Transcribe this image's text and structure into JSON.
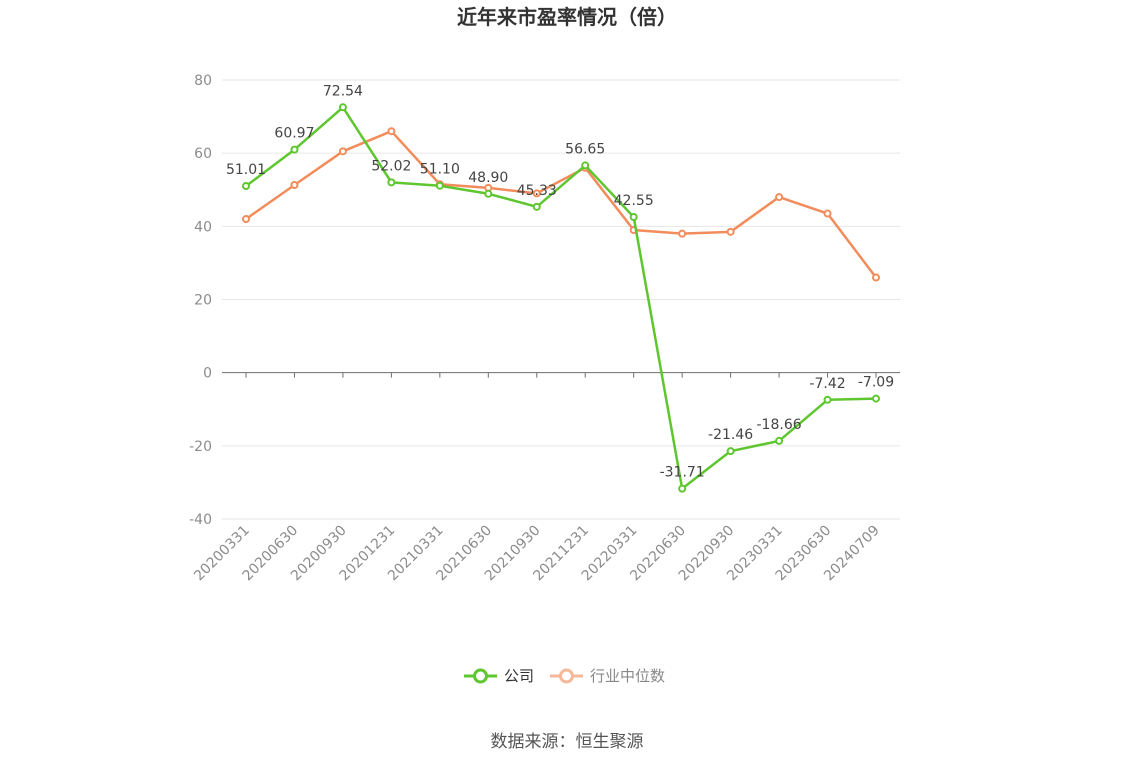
{
  "chart_data": {
    "type": "line",
    "title": "近年来市盈率情况（倍）",
    "xlabel": "",
    "ylabel": "",
    "categories": [
      "20200331",
      "20200630",
      "20200930",
      "20201231",
      "20210331",
      "20210630",
      "20210930",
      "20211231",
      "20220331",
      "20220630",
      "20220930",
      "20230331",
      "20230630",
      "20240709"
    ],
    "ylim": [
      -40,
      80
    ],
    "yticks": [
      80,
      60,
      40,
      20,
      0,
      -20,
      -40
    ],
    "grid": true,
    "legend": "bottom",
    "series": [
      {
        "name": "公司",
        "color": "#5ec62f",
        "values": [
          51.01,
          60.97,
          72.54,
          52.02,
          51.1,
          48.9,
          45.33,
          56.65,
          42.55,
          -31.71,
          -21.46,
          -18.66,
          -7.42,
          -7.09
        ],
        "labels": [
          "51.01",
          "60.97",
          "72.54",
          "52.02",
          "51.10",
          "48.90",
          "45.33",
          "56.65",
          "42.55",
          "-31.71",
          "-21.46",
          "-18.66",
          "-7.42",
          "-7.09"
        ]
      },
      {
        "name": "行业中位数",
        "color": "#f28c5a",
        "legend_color": "#f7b89a",
        "values": [
          42.0,
          51.3,
          60.5,
          66.0,
          51.5,
          50.5,
          49.0,
          56.0,
          39.0,
          38.0,
          38.5,
          48.0,
          43.5,
          26.0
        ]
      }
    ]
  },
  "source": "数据来源：恒生聚源"
}
